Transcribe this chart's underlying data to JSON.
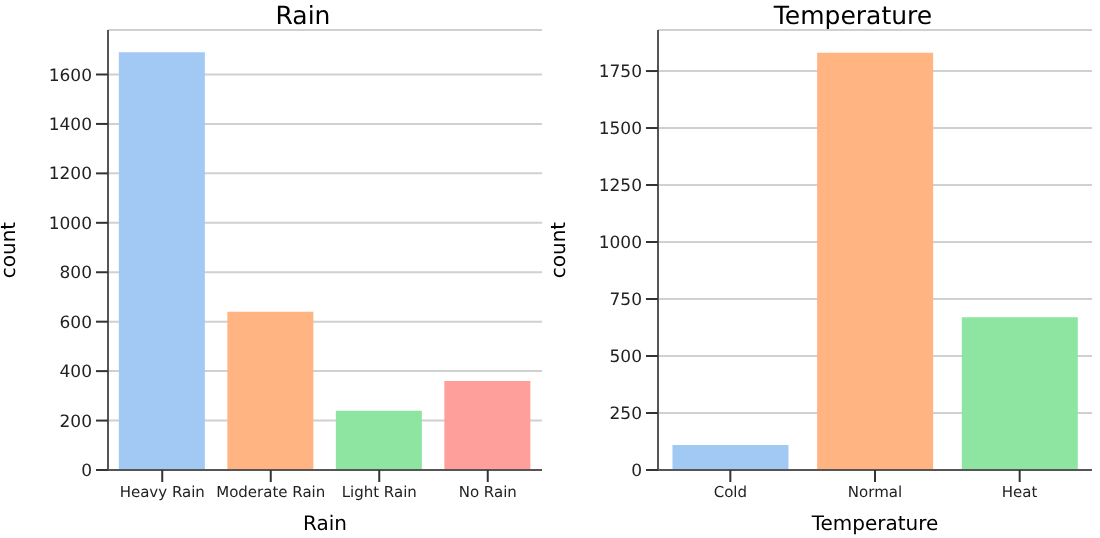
{
  "chart_data": [
    {
      "type": "bar",
      "title": "Rain",
      "xlabel": "Rain",
      "ylabel": "count",
      "categories": [
        "Heavy Rain",
        "Moderate Rain",
        "Light Rain",
        "No Rain"
      ],
      "values": [
        1690,
        640,
        240,
        360
      ],
      "colors": [
        "#a1c9f4",
        "#ffb482",
        "#8de5a1",
        "#ff9f9b"
      ],
      "ylim": [
        0,
        1780
      ],
      "yticks": [
        0,
        200,
        400,
        600,
        800,
        1000,
        1200,
        1400,
        1600
      ],
      "grid": "y"
    },
    {
      "type": "bar",
      "title": "Temperature",
      "xlabel": "Temperature",
      "ylabel": "count",
      "categories": [
        "Cold",
        "Normal",
        "Heat"
      ],
      "values": [
        110,
        1830,
        670
      ],
      "colors": [
        "#a1c9f4",
        "#ffb482",
        "#8de5a1"
      ],
      "ylim": [
        0,
        1930
      ],
      "yticks": [
        0,
        250,
        500,
        750,
        1000,
        1250,
        1500,
        1750
      ],
      "grid": "y"
    }
  ]
}
